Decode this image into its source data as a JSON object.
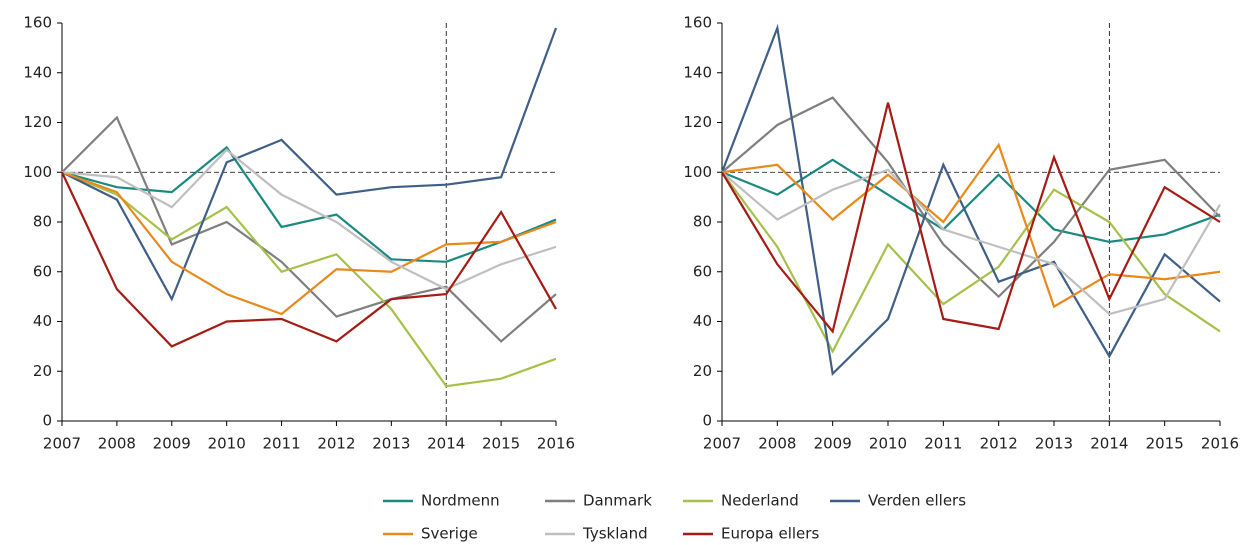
{
  "chart_data": [
    {
      "type": "line",
      "categories": [
        "2007",
        "2008",
        "2009",
        "2010",
        "2011",
        "2012",
        "2013",
        "2014",
        "2015",
        "2016"
      ],
      "ylim": [
        0,
        160
      ],
      "yticks": [
        0,
        20,
        40,
        60,
        80,
        100,
        120,
        140,
        160
      ],
      "reference_y": 100,
      "reference_x": "2014",
      "legend": "bottom",
      "series": [
        {
          "name": "Nordmenn",
          "color": "#1a8a80",
          "values": [
            100,
            94,
            92,
            110,
            78,
            83,
            65,
            64,
            72,
            81
          ]
        },
        {
          "name": "Danmark",
          "color": "#7f7f7f",
          "values": [
            100,
            122,
            71,
            80,
            64,
            42,
            49,
            54,
            32,
            51
          ]
        },
        {
          "name": "Nederland",
          "color": "#a6c14a",
          "values": [
            100,
            91,
            73,
            86,
            60,
            67,
            45,
            14,
            17,
            25
          ]
        },
        {
          "name": "Verden ellers",
          "color": "#3f5f86",
          "values": [
            100,
            89,
            49,
            104,
            113,
            91,
            94,
            95,
            98,
            158
          ]
        },
        {
          "name": "Sverige",
          "color": "#e8891c",
          "values": [
            100,
            92,
            64,
            51,
            43,
            61,
            60,
            71,
            72,
            80
          ]
        },
        {
          "name": "Tyskland",
          "color": "#bfbfbf",
          "values": [
            100,
            98,
            86,
            109,
            91,
            80,
            64,
            53,
            63,
            70
          ]
        },
        {
          "name": "Europa ellers",
          "color": "#a51c14",
          "values": [
            100,
            53,
            30,
            40,
            41,
            32,
            49,
            51,
            84,
            45
          ]
        }
      ]
    },
    {
      "type": "line",
      "categories": [
        "2007",
        "2008",
        "2009",
        "2010",
        "2011",
        "2012",
        "2013",
        "2014",
        "2015",
        "2016"
      ],
      "ylim": [
        0,
        160
      ],
      "yticks": [
        0,
        20,
        40,
        60,
        80,
        100,
        120,
        140,
        160
      ],
      "reference_y": 100,
      "reference_x": "2014",
      "series": [
        {
          "color": "#1a8a80",
          "values": [
            100,
            91,
            105,
            91,
            77,
            99,
            77,
            72,
            75,
            83
          ]
        },
        {
          "color": "#7f7f7f",
          "values": [
            100,
            119,
            130,
            104,
            71,
            50,
            72,
            101,
            105,
            82
          ]
        },
        {
          "color": "#a6c14a",
          "values": [
            100,
            70,
            28,
            71,
            47,
            62,
            93,
            80,
            51,
            36
          ]
        },
        {
          "color": "#3f5f86",
          "values": [
            100,
            158,
            19,
            41,
            103,
            56,
            64,
            26,
            67,
            48
          ]
        },
        {
          "color": "#e8891c",
          "values": [
            100,
            103,
            81,
            99,
            80,
            111,
            46,
            59,
            57,
            60
          ]
        },
        {
          "color": "#bfbfbf",
          "values": [
            100,
            81,
            93,
            101,
            77,
            70,
            63,
            43,
            49,
            87
          ]
        },
        {
          "color": "#a51c14",
          "values": [
            100,
            63,
            36,
            128,
            41,
            37,
            106,
            49,
            94,
            80
          ]
        }
      ]
    }
  ]
}
